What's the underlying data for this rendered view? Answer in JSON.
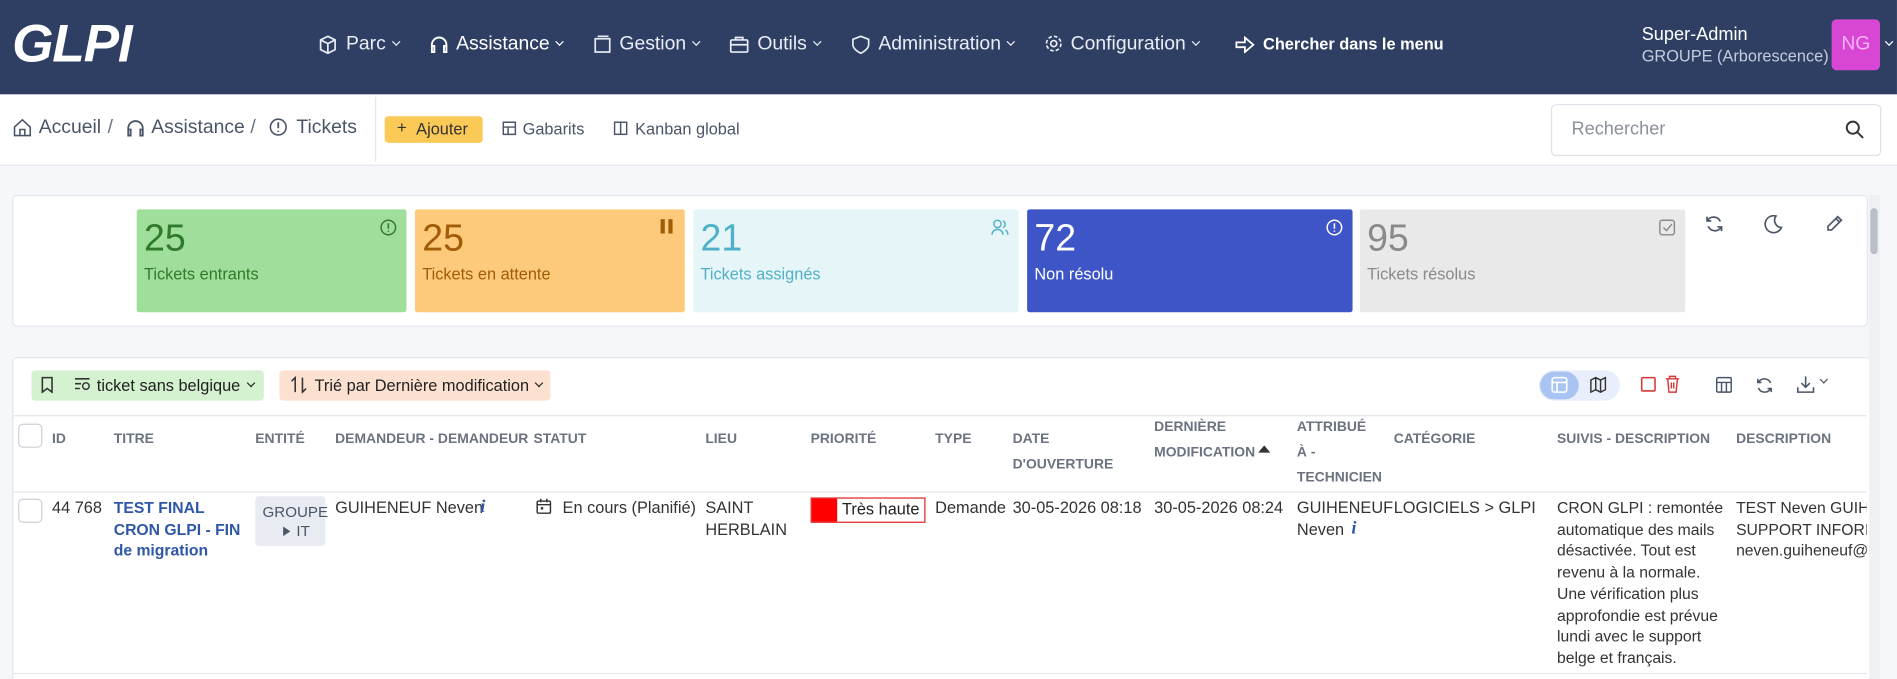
{
  "header": {
    "logo": "GLPI",
    "nav": [
      "Parc",
      "Assistance",
      "Gestion",
      "Outils",
      "Administration",
      "Configuration"
    ],
    "search_menu": "Chercher dans le menu",
    "user": {
      "name": "Super-Admin",
      "profile": "GROUPE (Arborescence)",
      "initials": "NG"
    }
  },
  "toolbar": {
    "breadcrumb": [
      "Accueil",
      "Assistance",
      "Tickets"
    ],
    "actions": [
      "Ajouter",
      "Gabarits",
      "Kanban global"
    ],
    "search_placeholder": "Rechercher"
  },
  "tiles": [
    {
      "count": 25,
      "label": "Tickets entrants"
    },
    {
      "count": 25,
      "label": "Tickets en attente"
    },
    {
      "count": 21,
      "label": "Tickets assignés"
    },
    {
      "count": 72,
      "label": "Non résolu"
    },
    {
      "count": 95,
      "label": "Tickets résolus"
    }
  ],
  "filters": {
    "saved_search": "ticket sans belgique",
    "sort": "Trié par Dernière modification"
  },
  "table": {
    "columns": [
      "ID",
      "TITRE",
      "ENTITÉ",
      "DEMANDEUR - DEMANDEUR",
      "STATUT",
      "LIEU",
      "PRIORITÉ",
      "TYPE",
      "DATE D'OUVERTURE",
      "DERNIÈRE MODIFICATION",
      "ATTRIBUÉ À - TECHNICIEN",
      "CATÉGORIE",
      "SUIVIS - DESCRIPTION",
      "DESCRIPTION"
    ],
    "rows": [
      [
        "44 768",
        "TEST FINAL CRON GLPI - FIN de migration",
        [
          "GROUPE",
          "IT"
        ],
        "GUIHENEUF Neven",
        "En cours (Planifié)",
        "SAINT HERBLAIN",
        "Très haute",
        "Demande",
        "30-05-2026 08:18",
        "30-05-2026 08:24",
        "GUIHENEUF Neven",
        "LOGICIELS > GLPI",
        "CRON GLPI : remontée automatique des mails désactivée. Tout est revenu à la normale. Une vérification plus approfondie est prévue lundi avec le support belge et français.",
        [
          "TEST Neven GUIHE",
          "SUPPORT INFORM",
          "neven.guiheneuf@"
        ]
      ]
    ]
  }
}
